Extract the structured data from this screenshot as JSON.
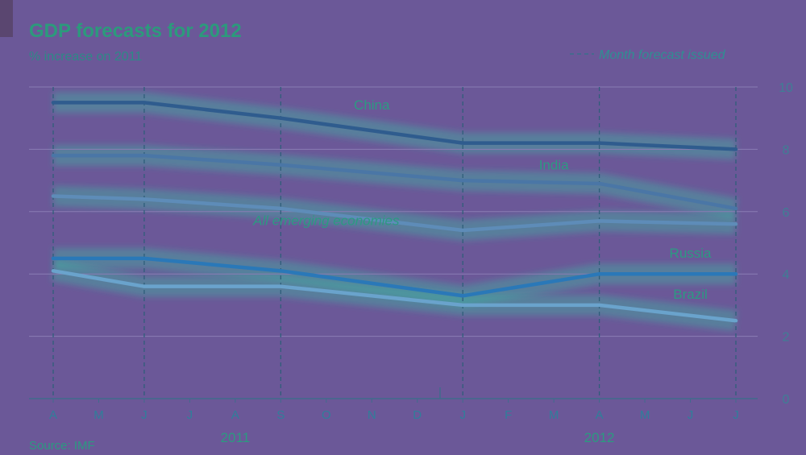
{
  "chart_data": {
    "type": "line",
    "title": "GDP forecasts for 2012",
    "subtitle": "% increase on 2011",
    "legend": "Month forecast issued",
    "source": "Source: IMF",
    "x": [
      "2011-04",
      "2011-05",
      "2011-06",
      "2011-07",
      "2011-08",
      "2011-09",
      "2011-10",
      "2011-11",
      "2011-12",
      "2012-01",
      "2012-02",
      "2012-03",
      "2012-04",
      "2012-05",
      "2012-06",
      "2012-07"
    ],
    "x_tick_labels": [
      "A",
      "M",
      "J",
      "J",
      "A",
      "S",
      "O",
      "N",
      "D",
      "J",
      "F",
      "M",
      "A",
      "M",
      "J",
      "J"
    ],
    "year_labels": [
      {
        "label": "2011",
        "x": "2011-08"
      },
      {
        "label": "2012",
        "x": "2012-04"
      }
    ],
    "forecast_months": [
      "2011-04",
      "2011-06",
      "2011-09",
      "2012-01",
      "2012-04",
      "2012-07"
    ],
    "series": [
      {
        "name": "China",
        "x": [
          "2011-04",
          "2011-06",
          "2011-09",
          "2012-01",
          "2012-04",
          "2012-07"
        ],
        "values": [
          9.5,
          9.5,
          9.0,
          8.2,
          8.2,
          8.0
        ],
        "color": "#2f5c8e",
        "label_at": "2011-11"
      },
      {
        "name": "India",
        "x": [
          "2011-04",
          "2011-06",
          "2011-09",
          "2012-01",
          "2012-04",
          "2012-07"
        ],
        "values": [
          7.8,
          7.8,
          7.5,
          7.0,
          6.9,
          6.1
        ],
        "color": "#4a76a6",
        "label_at": "2012-03"
      },
      {
        "name": "All emerging economies",
        "x": [
          "2011-04",
          "2011-06",
          "2011-09",
          "2012-01",
          "2012-04",
          "2012-07"
        ],
        "values": [
          6.5,
          6.4,
          6.1,
          5.4,
          5.7,
          5.6
        ],
        "color": "#5e8cb8",
        "label_at": "2011-10"
      },
      {
        "name": "Russia",
        "x": [
          "2011-04",
          "2011-06",
          "2011-09",
          "2012-01",
          "2012-04",
          "2012-07"
        ],
        "values": [
          4.5,
          4.5,
          4.1,
          3.3,
          4.0,
          4.0
        ],
        "color": "#2a78b8",
        "label_at": "2012-06"
      },
      {
        "name": "Brazil",
        "x": [
          "2011-04",
          "2011-06",
          "2011-09",
          "2012-01",
          "2012-04",
          "2012-07"
        ],
        "values": [
          4.1,
          3.6,
          3.6,
          3.0,
          3.0,
          2.5
        ],
        "color": "#6aa3cc",
        "label_at": "2012-06"
      }
    ],
    "ylim": [
      0,
      10
    ],
    "yticks": [
      0,
      2,
      4,
      6,
      8,
      10
    ],
    "y_axis_side": "right",
    "grid": true,
    "legend_placement": "top-right"
  }
}
